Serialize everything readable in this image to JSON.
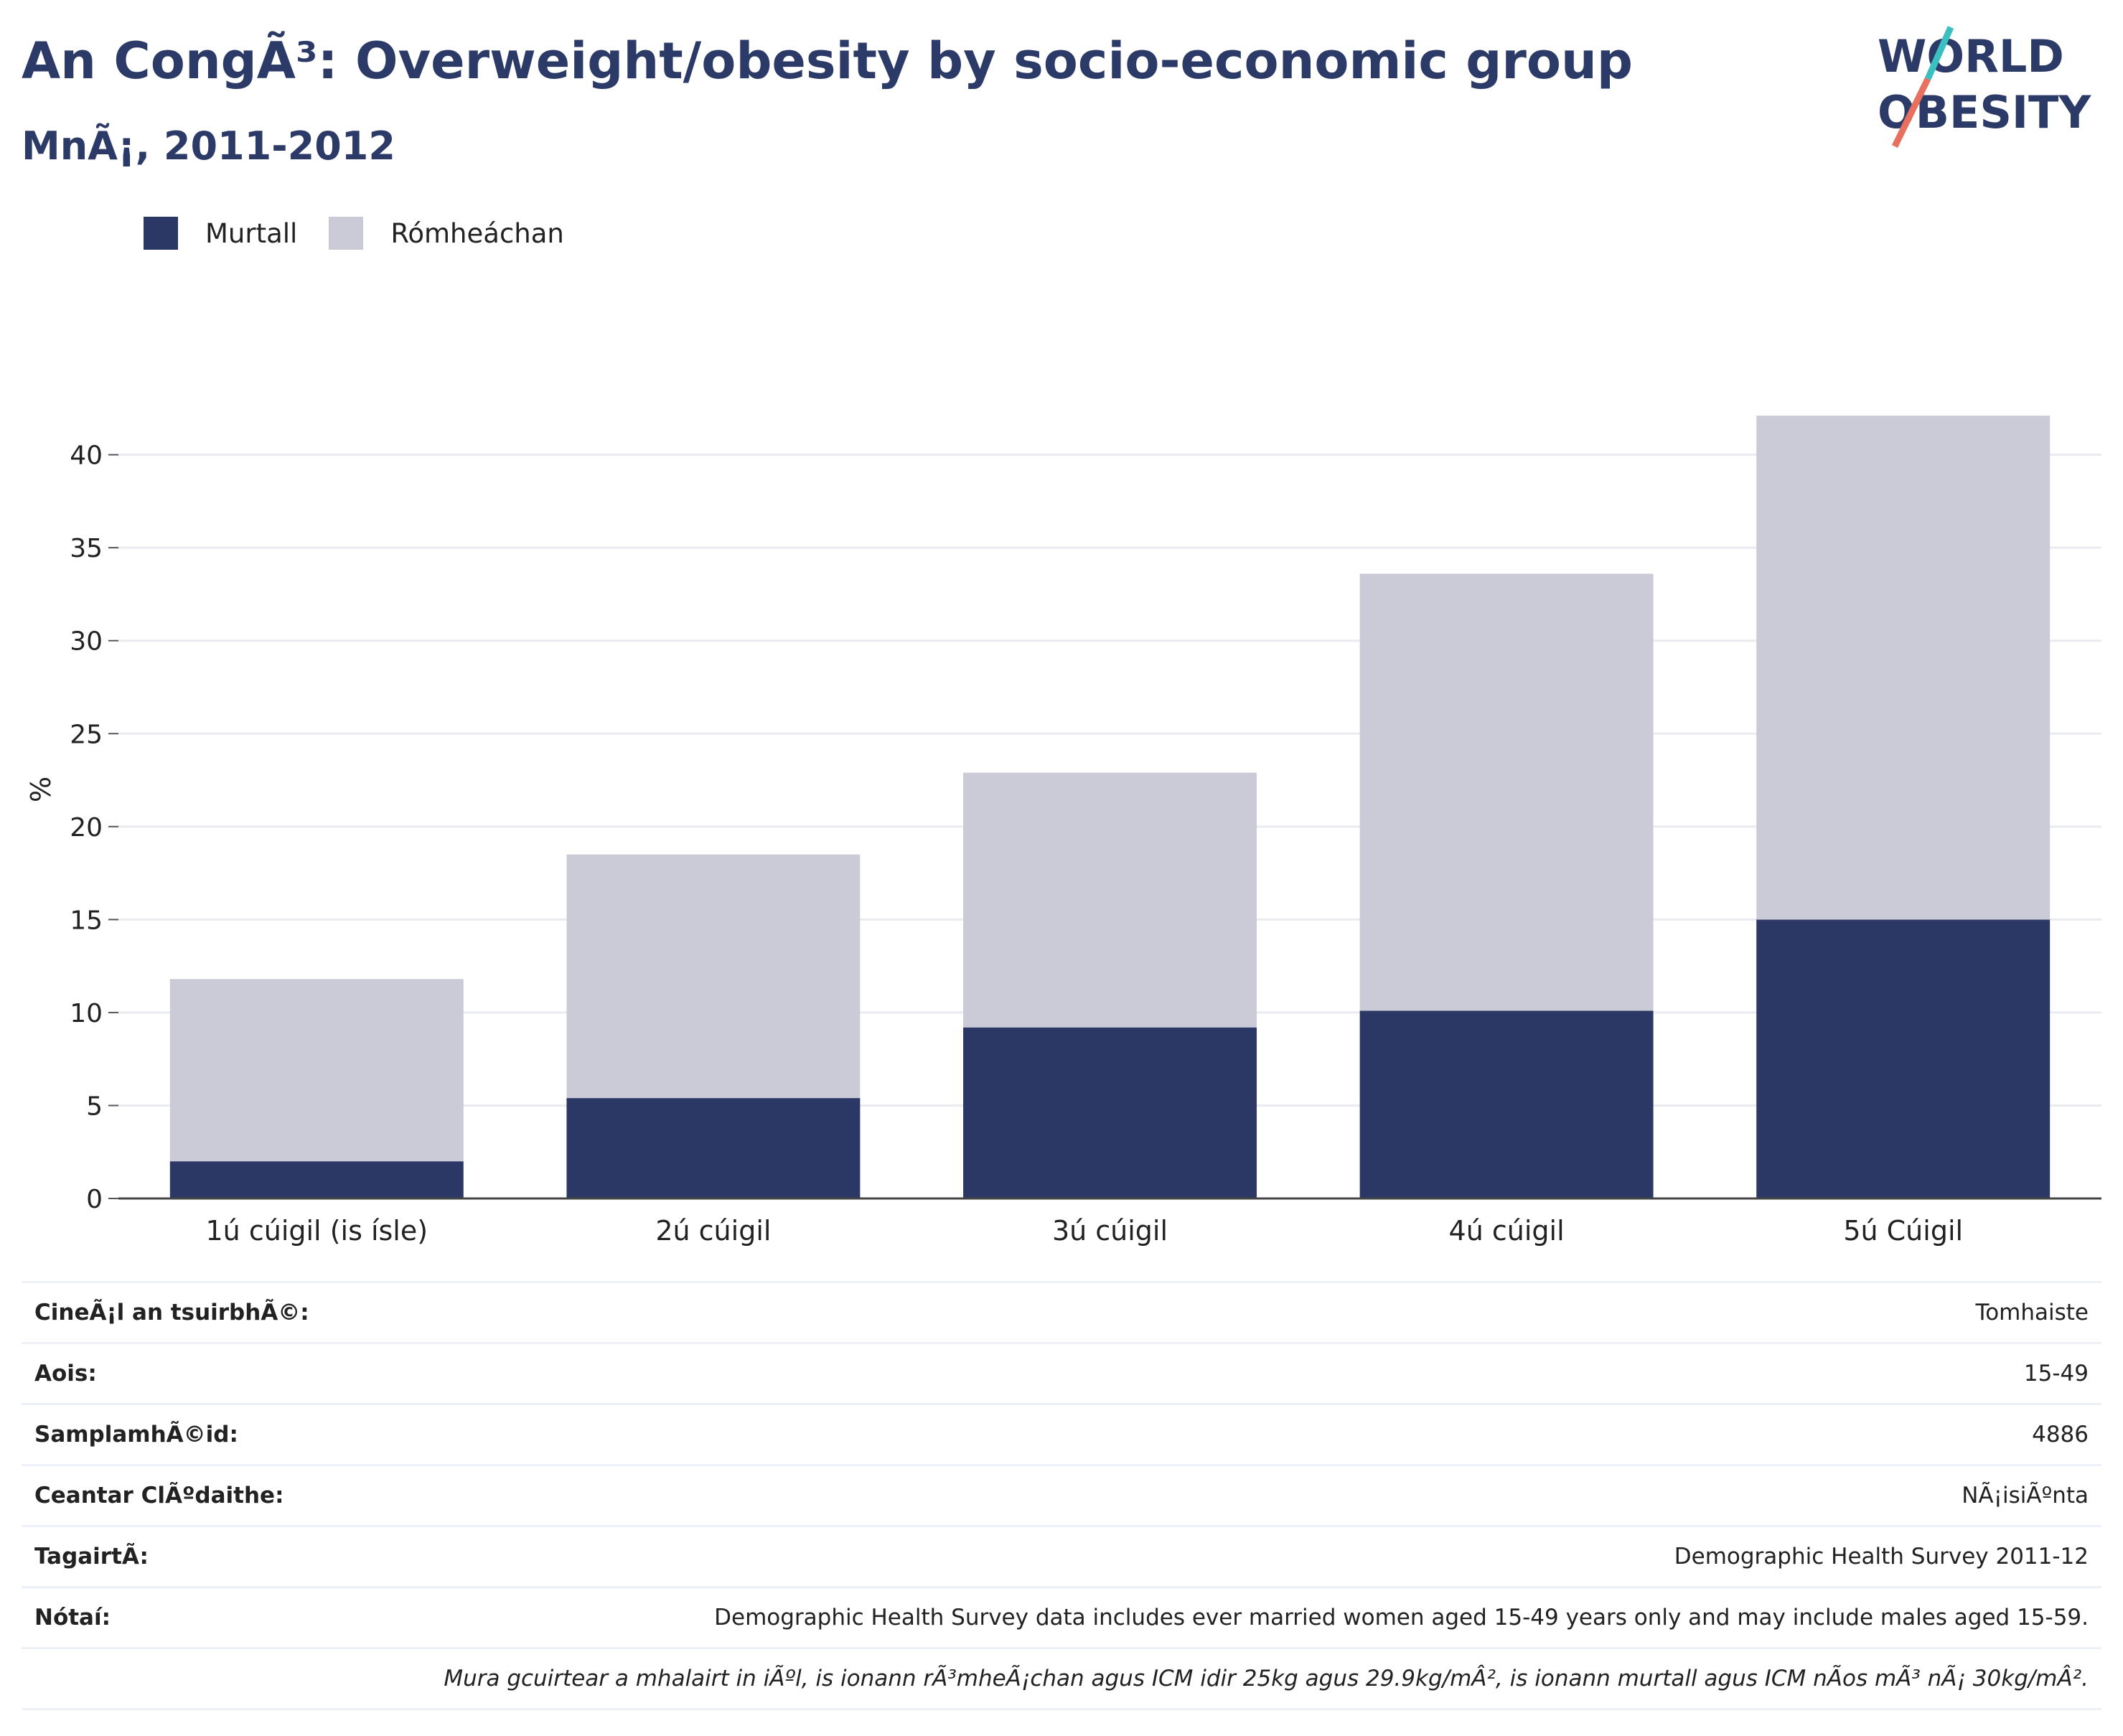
{
  "header": {
    "title": "An CongÃ³: Overweight/obesity by socio-economic group",
    "subtitle": "MnÃ¡, 2011-2012"
  },
  "logo": {
    "line1": "WORLD",
    "line2": "OBESITY",
    "accent_colors": [
      "#3cbfc1",
      "#e8705f"
    ]
  },
  "legend": {
    "items": [
      {
        "label": "Murtall",
        "color": "#2b3765"
      },
      {
        "label": "Rómheáchan",
        "color": "#cacbd7"
      }
    ]
  },
  "chart_data": {
    "type": "bar",
    "stacked": true,
    "categories": [
      "1ú cúigil (is ísle)",
      "2ú cúigil",
      "3ú cúigil",
      "4ú cúigil",
      "5ú Cúigil"
    ],
    "series": [
      {
        "name": "Murtall",
        "color": "#2b3765",
        "values": [
          2.0,
          5.4,
          9.2,
          10.1,
          15.0
        ]
      },
      {
        "name": "Rómheáchan",
        "color": "#cacbd7",
        "values": [
          9.8,
          13.1,
          13.7,
          23.5,
          27.1
        ]
      }
    ],
    "ylabel": "%",
    "xlabel": "",
    "ylim": [
      0,
      44
    ],
    "yticks": [
      0,
      5,
      10,
      15,
      20,
      25,
      30,
      35,
      40
    ],
    "grid": true
  },
  "info_table": {
    "rows": [
      {
        "key": "CineÃ¡l an tsuirbhÃ©:",
        "value": "Tomhaiste"
      },
      {
        "key": "Aois:",
        "value": "15-49"
      },
      {
        "key": "SamplamhÃ©id:",
        "value": "4886"
      },
      {
        "key": "Ceantar ClÃºdaithe:",
        "value": "NÃ¡isiÃºnta"
      },
      {
        "key": "TagairtÃ:",
        "value": "Demographic Health Survey 2011-12"
      },
      {
        "key": "Nótaí:",
        "value": "Demographic Health Survey data includes ever married women aged 15-49 years only and may include males aged 15-59."
      },
      {
        "key": "",
        "value": "Mura gcuirtear a mhalairt in iÃºl, is ionann rÃ³mheÃ¡chan agus ICM idir 25kg agus 29.9kg/mÂ², is ionann murtall agus ICM nÃ­os mÃ³ nÃ¡ 30kg/mÂ²."
      }
    ]
  }
}
